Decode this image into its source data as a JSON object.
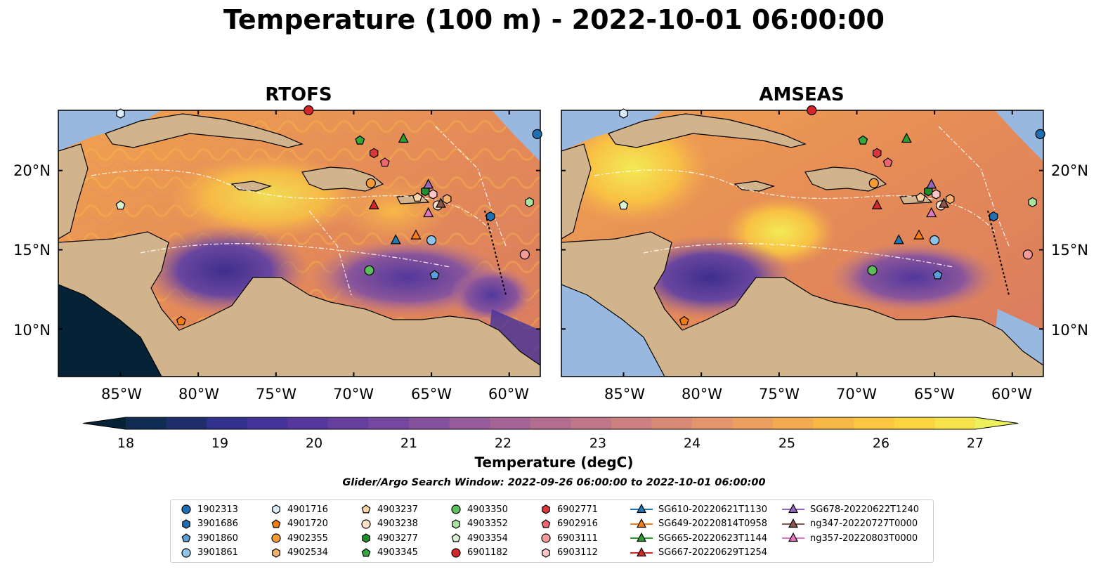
{
  "title": "Temperature (100 m) - 2022-10-01 06:00:00",
  "panels": [
    {
      "title": "RTOFS"
    },
    {
      "title": "AMSEAS"
    }
  ],
  "axes": {
    "lon_labels": [
      "85°W",
      "80°W",
      "75°W",
      "70°W",
      "65°W",
      "60°W"
    ],
    "lat_labels": [
      "20°N",
      "15°N",
      "10°N"
    ]
  },
  "colorbar": {
    "title": "Temperature (degC)",
    "ticks": [
      "18",
      "19",
      "20",
      "21",
      "22",
      "23",
      "24",
      "25",
      "26",
      "27"
    ],
    "range": [
      18,
      27
    ],
    "extend": "both",
    "colors": [
      "#052236",
      "#0f2d52",
      "#1f2f6e",
      "#31308a",
      "#44339a",
      "#56389d",
      "#663f9e",
      "#76479e",
      "#86519c",
      "#955b9a",
      "#a46495",
      "#b26d8f",
      "#bf7789",
      "#cc8080",
      "#d88a77",
      "#e3956c",
      "#ec9f5f",
      "#f3ab52",
      "#f8b846",
      "#fbc640",
      "#fbd53f",
      "#f6e34b",
      "#ecf05a"
    ]
  },
  "search_window": "Glider/Argo Search Window: 2022-09-26 06:00:00 to 2022-10-01 06:00:00",
  "colors": {
    "land": "#d2b48c",
    "water_shallow": "#98b8e0",
    "background": "#ffffff"
  },
  "legend": {
    "items": [
      {
        "label": "1902313",
        "marker": "circle",
        "color": "#1f6fb4"
      },
      {
        "label": "3901686",
        "marker": "hexagon",
        "color": "#1f6fb4"
      },
      {
        "label": "3901860",
        "marker": "pentagon",
        "color": "#5aa0d8"
      },
      {
        "label": "3901861",
        "marker": "circle",
        "color": "#8fc4ea"
      },
      {
        "label": "4901716",
        "marker": "hexagon",
        "color": "#d9ecf8"
      },
      {
        "label": "4901720",
        "marker": "pentagon",
        "color": "#f07d10"
      },
      {
        "label": "4902355",
        "marker": "circle",
        "color": "#f59a35"
      },
      {
        "label": "4902534",
        "marker": "hexagon",
        "color": "#f5b06a"
      },
      {
        "label": "4903237",
        "marker": "pentagon",
        "color": "#fcd3a5"
      },
      {
        "label": "4903238",
        "marker": "circle",
        "color": "#fde3c8"
      },
      {
        "label": "4903277",
        "marker": "hexagon",
        "color": "#1f8f2a"
      },
      {
        "label": "4903345",
        "marker": "pentagon",
        "color": "#34a83c"
      },
      {
        "label": "4903350",
        "marker": "circle",
        "color": "#5cbf5c"
      },
      {
        "label": "4903352",
        "marker": "hexagon",
        "color": "#a8e3a0"
      },
      {
        "label": "4903354",
        "marker": "pentagon",
        "color": "#d8f4d2"
      },
      {
        "label": "6901182",
        "marker": "circle",
        "color": "#d62728"
      },
      {
        "label": "6902771",
        "marker": "hexagon",
        "color": "#d9383a"
      },
      {
        "label": "6902916",
        "marker": "pentagon",
        "color": "#f06670"
      },
      {
        "label": "6903111",
        "marker": "circle",
        "color": "#f49a9a"
      },
      {
        "label": "6903112",
        "marker": "hexagon",
        "color": "#fcc6c6"
      },
      {
        "label": "SG610-20220621T1130",
        "marker": "triangle",
        "color": "#1f77b4"
      },
      {
        "label": "SG649-20220814T0958",
        "marker": "triangle",
        "color": "#ff7f0e"
      },
      {
        "label": "SG665-20220623T1144",
        "marker": "triangle",
        "color": "#2ca02c"
      },
      {
        "label": "SG667-20220629T1254",
        "marker": "triangle",
        "color": "#d62728"
      },
      {
        "label": "SG678-20220622T1240",
        "marker": "triangle",
        "color": "#9467bd"
      },
      {
        "label": "ng347-20220727T0000",
        "marker": "triangle",
        "color": "#8c564b"
      },
      {
        "label": "ng357-20220803T0000",
        "marker": "triangle",
        "color": "#e377c2"
      }
    ]
  },
  "markers": [
    {
      "id": "1902313",
      "lon": -58.2,
      "lat": 22.3
    },
    {
      "id": "3901686",
      "lon": -61.2,
      "lat": 17.1
    },
    {
      "id": "3901860",
      "lon": -64.8,
      "lat": 13.4
    },
    {
      "id": "3901861",
      "lon": -65.0,
      "lat": 15.6
    },
    {
      "id": "4901716",
      "lon": -85.0,
      "lat": 23.6
    },
    {
      "id": "4901720",
      "lon": -81.1,
      "lat": 10.5
    },
    {
      "id": "4902355",
      "lon": -68.9,
      "lat": 19.2
    },
    {
      "id": "4902534",
      "lon": -64.0,
      "lat": 18.2
    },
    {
      "id": "4903237",
      "lon": -65.9,
      "lat": 18.3
    },
    {
      "id": "4903238",
      "lon": -64.6,
      "lat": 17.8
    },
    {
      "id": "4903277",
      "lon": -65.4,
      "lat": 18.7
    },
    {
      "id": "4903345",
      "lon": -69.6,
      "lat": 21.9
    },
    {
      "id": "4903350",
      "lon": -69.0,
      "lat": 13.7
    },
    {
      "id": "4903352",
      "lon": -58.7,
      "lat": 18.0
    },
    {
      "id": "4903354",
      "lon": -85.0,
      "lat": 17.8
    },
    {
      "id": "6901182",
      "lon": -72.9,
      "lat": 23.8
    },
    {
      "id": "6902771",
      "lon": -68.7,
      "lat": 21.1
    },
    {
      "id": "6902916",
      "lon": -68.0,
      "lat": 20.5
    },
    {
      "id": "6903111",
      "lon": -59.0,
      "lat": 14.7
    },
    {
      "id": "6903112",
      "lon": -64.9,
      "lat": 18.5
    },
    {
      "id": "SG610-20220621T1130",
      "lon": -67.3,
      "lat": 15.6
    },
    {
      "id": "SG649-20220814T0958",
      "lon": -66.0,
      "lat": 15.9
    },
    {
      "id": "SG665-20220623T1144",
      "lon": -66.8,
      "lat": 22.0
    },
    {
      "id": "SG667-20220629T1254",
      "lon": -68.7,
      "lat": 17.8
    },
    {
      "id": "SG678-20220622T1240",
      "lon": -65.2,
      "lat": 19.1
    },
    {
      "id": "ng347-20220727T0000",
      "lon": -64.4,
      "lat": 17.9
    },
    {
      "id": "ng357-20220803T0000",
      "lon": -65.2,
      "lat": 17.3
    }
  ]
}
